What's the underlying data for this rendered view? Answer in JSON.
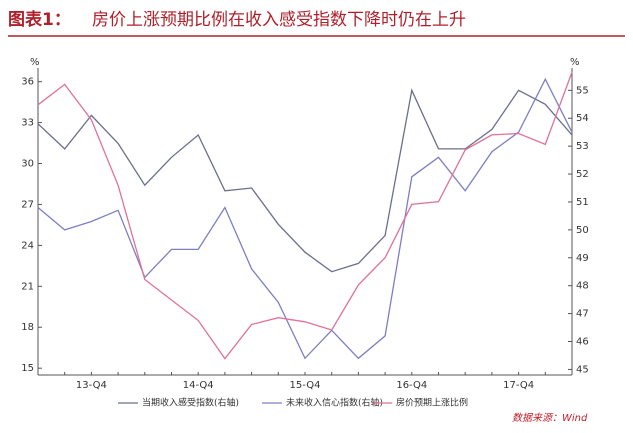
{
  "chart_data": {
    "type": "line",
    "title_prefix": "图表1：",
    "title": "房价上涨预期比例在收入感受指数下降时仍在上升",
    "y_unit": "%",
    "y2_unit": "%",
    "source": "数据来源：Wind",
    "categories": [
      null,
      null,
      "13-Q4",
      null,
      null,
      null,
      "14-Q4",
      null,
      null,
      null,
      "15-Q4",
      null,
      null,
      null,
      "16-Q4",
      null,
      null,
      null,
      "17-Q4",
      null,
      null
    ],
    "ylim": [
      14.5,
      37
    ],
    "yticks": [
      15,
      18,
      21,
      24,
      27,
      30,
      33,
      36
    ],
    "y2lim": [
      44.8,
      55.8
    ],
    "y2ticks": [
      45,
      46,
      47,
      48,
      49,
      50,
      51,
      52,
      53,
      54,
      55
    ],
    "series": [
      {
        "name": "当期收入感受指数(右轴)",
        "color": "#6b6f8e",
        "axis": "y2",
        "values": [
          53.8,
          52.9,
          54.1,
          53.1,
          51.6,
          52.6,
          53.4,
          51.4,
          51.5,
          50.2,
          49.2,
          48.5,
          48.8,
          49.8,
          55.0,
          52.9,
          52.9,
          53.6,
          55.0,
          54.5,
          53.4
        ]
      },
      {
        "name": "未来收入信心指数(右轴)",
        "color": "#7d7fc4",
        "axis": "y2",
        "values": [
          50.8,
          50.0,
          50.3,
          50.7,
          48.3,
          49.3,
          49.3,
          50.8,
          48.6,
          47.4,
          45.4,
          46.4,
          45.4,
          46.2,
          51.9,
          52.6,
          51.4,
          52.8,
          53.5,
          55.4,
          53.5
        ]
      },
      {
        "name": "房价预期上涨比例",
        "color": "#e0719a",
        "axis": "y",
        "values": [
          34.3,
          35.8,
          33.2,
          28.4,
          21.5,
          20.0,
          18.5,
          15.7,
          18.2,
          18.7,
          18.4,
          17.8,
          21.1,
          23.1,
          27.0,
          27.2,
          31.0,
          32.1,
          32.2,
          31.4,
          36.7
        ]
      }
    ]
  }
}
